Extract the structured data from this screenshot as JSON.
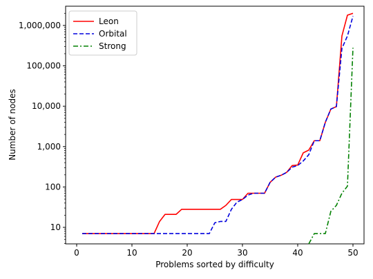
{
  "chart_data": {
    "type": "line",
    "title": "",
    "xlabel": "Problems sorted by difficulty",
    "ylabel": "Number of nodes",
    "y_scale": "log",
    "xlim": [
      -2,
      52
    ],
    "ylim": [
      3.9,
      3000000
    ],
    "x_ticks": [
      0,
      10,
      20,
      30,
      40,
      50
    ],
    "y_ticks": [
      10,
      100,
      1000,
      10000,
      100000,
      1000000
    ],
    "y_tick_labels": [
      "10",
      "100",
      "1,000",
      "10,000",
      "100,000",
      "1,000,000"
    ],
    "grid": false,
    "legend_position": "top-left",
    "series": [
      {
        "name": "Leon",
        "color": "#ff0000",
        "line_style": "solid",
        "x": [
          1,
          2,
          3,
          4,
          5,
          6,
          7,
          8,
          9,
          10,
          11,
          12,
          13,
          14,
          15,
          16,
          17,
          18,
          19,
          20,
          21,
          22,
          23,
          24,
          25,
          26,
          27,
          28,
          29,
          30,
          31,
          32,
          33,
          34,
          35,
          36,
          37,
          38,
          39,
          40,
          41,
          42,
          43,
          44,
          45,
          46,
          47,
          48,
          49,
          50
        ],
        "y": [
          7,
          7,
          7,
          7,
          7,
          7,
          7,
          7,
          7,
          7,
          7,
          7,
          7,
          7,
          14,
          21,
          21,
          21,
          28,
          28,
          28,
          28,
          28,
          28,
          28,
          28,
          35,
          49,
          49,
          49,
          70,
          70,
          70,
          70,
          130,
          175,
          195,
          230,
          340,
          350,
          700,
          820,
          1400,
          1400,
          4000,
          8500,
          9800,
          550000,
          1800000,
          2000000
        ]
      },
      {
        "name": "Orbital",
        "color": "#0000dd",
        "line_style": "dashed",
        "x": [
          1,
          2,
          3,
          4,
          5,
          6,
          7,
          8,
          9,
          10,
          11,
          12,
          13,
          14,
          15,
          16,
          17,
          18,
          19,
          20,
          21,
          22,
          23,
          24,
          25,
          26,
          27,
          28,
          29,
          30,
          31,
          32,
          33,
          34,
          35,
          36,
          37,
          38,
          39,
          40,
          41,
          42,
          43,
          44,
          45,
          46,
          47,
          48,
          49,
          50
        ],
        "y": [
          7,
          7,
          7,
          7,
          7,
          7,
          7,
          7,
          7,
          7,
          7,
          7,
          7,
          7,
          7,
          7,
          7,
          7,
          7,
          7,
          7,
          7,
          7,
          7,
          13,
          14,
          14,
          28,
          42,
          49,
          63,
          70,
          70,
          70,
          130,
          175,
          195,
          230,
          310,
          340,
          440,
          630,
          1400,
          1400,
          4000,
          8500,
          9800,
          270000,
          550000,
          1700000
        ]
      },
      {
        "name": "Strong",
        "color": "#008000",
        "line_style": "dashdot",
        "x": [
          42,
          43,
          44,
          45,
          46,
          47,
          48,
          49,
          50
        ],
        "y": [
          3.9,
          7,
          7,
          7,
          25,
          35,
          70,
          105,
          280000
        ]
      }
    ]
  }
}
